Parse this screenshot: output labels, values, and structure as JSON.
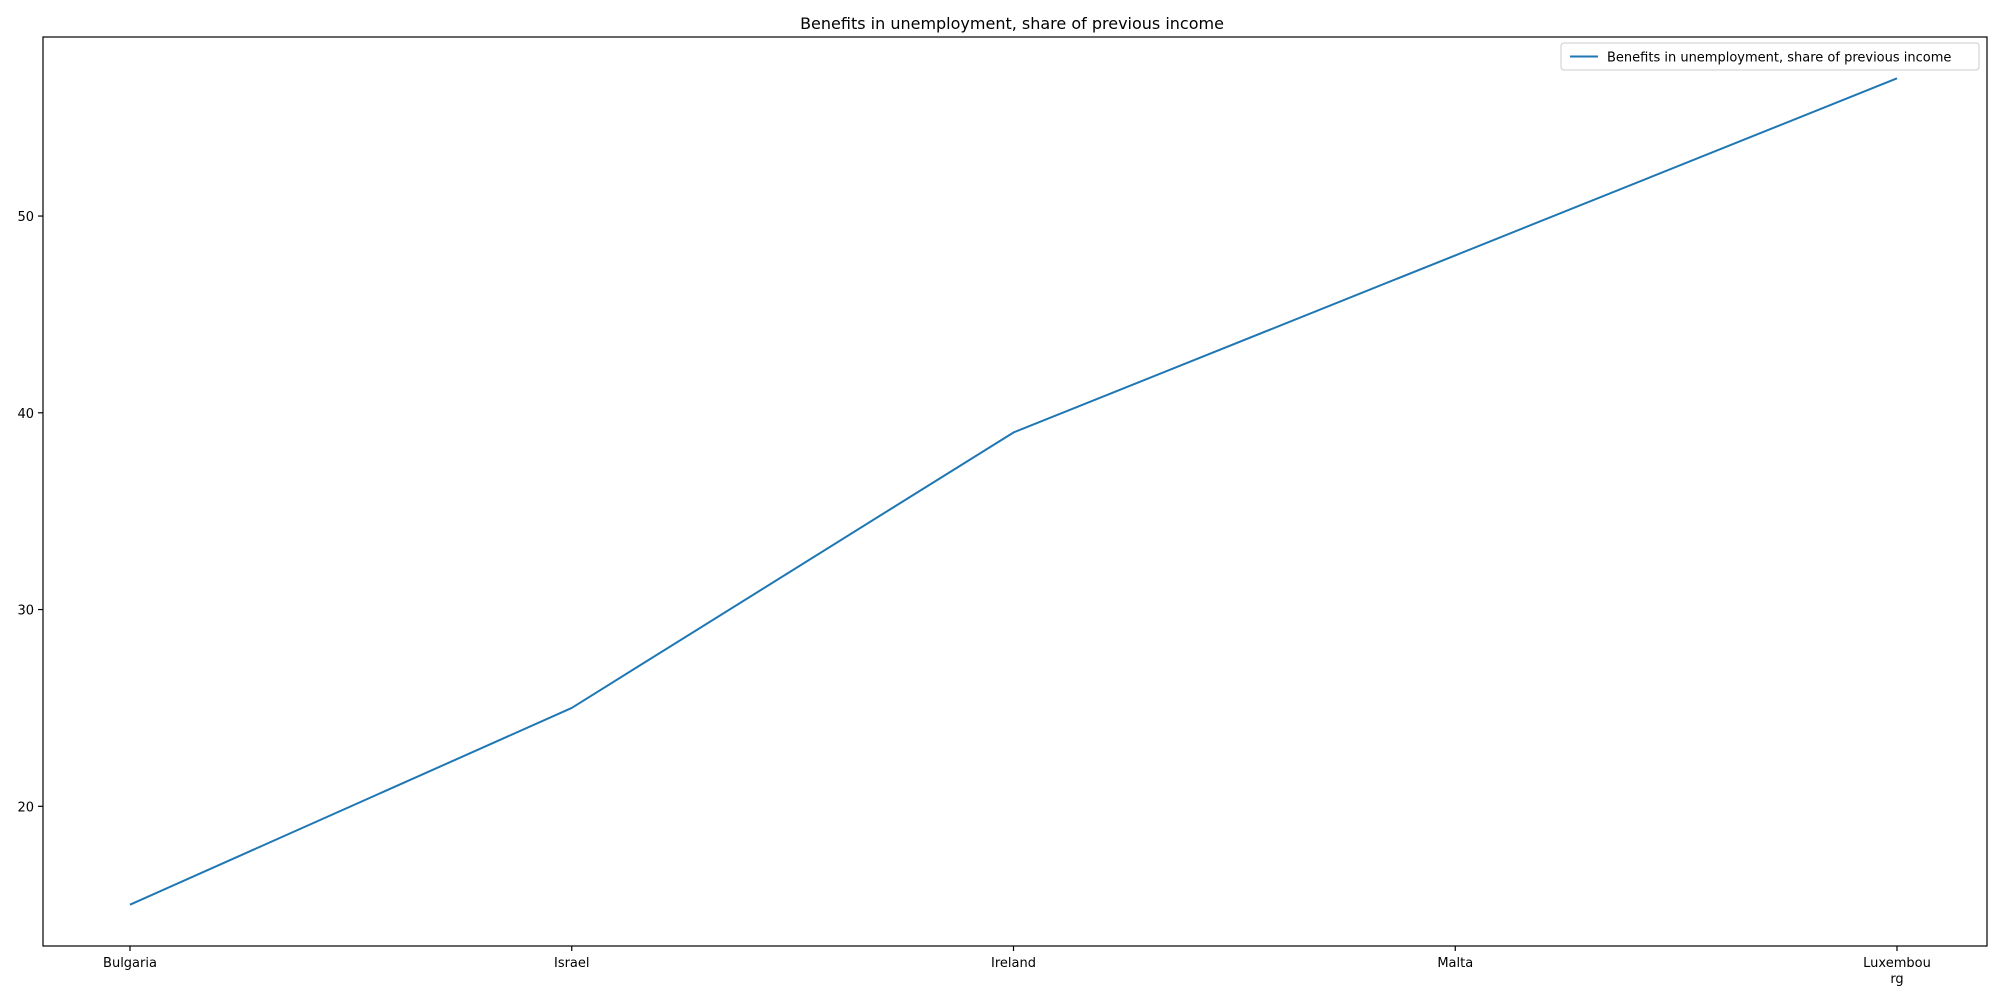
{
  "chart_data": {
    "type": "line",
    "title": "Benefits in unemployment, share of previous income",
    "categories": [
      "Bulgaria",
      "Israel",
      "Ireland",
      "Malta",
      "Luxembourg"
    ],
    "category_labels": [
      [
        "Bulgaria"
      ],
      [
        "Israel"
      ],
      [
        "Ireland"
      ],
      [
        "Malta"
      ],
      [
        "Luxembou",
        "rg"
      ]
    ],
    "series": [
      {
        "name": "Benefits in unemployment, share of previous income",
        "values": [
          15,
          25,
          39,
          48,
          57
        ],
        "color": "#1f77b4"
      }
    ],
    "xlabel": "",
    "ylabel": "",
    "ylim": [
      12.9,
      59.1
    ],
    "yticks": [
      20,
      30,
      40,
      50
    ],
    "grid": false,
    "legend": "top-right"
  }
}
